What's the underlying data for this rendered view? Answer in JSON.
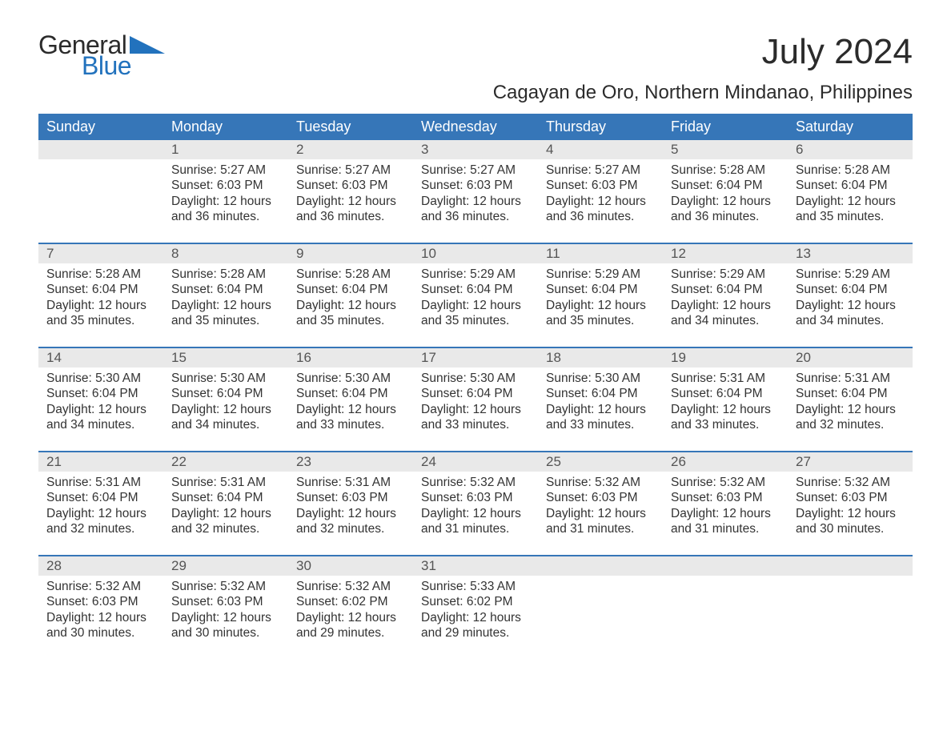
{
  "logo": {
    "text_top": "General",
    "text_bottom": "Blue",
    "accent_color": "#2272bd"
  },
  "title": "July 2024",
  "subtitle": "Cagayan de Oro, Northern Mindanao, Philippines",
  "colors": {
    "header_bg": "#3676b8",
    "header_text": "#ffffff",
    "daynum_bg": "#e9e9e9",
    "week_border": "#3676b8",
    "body_text": "#333333"
  },
  "day_headers": [
    "Sunday",
    "Monday",
    "Tuesday",
    "Wednesday",
    "Thursday",
    "Friday",
    "Saturday"
  ],
  "weeks": [
    [
      {
        "n": "",
        "sunrise": "",
        "sunset": "",
        "daylight1": "",
        "daylight2": ""
      },
      {
        "n": "1",
        "sunrise": "Sunrise: 5:27 AM",
        "sunset": "Sunset: 6:03 PM",
        "daylight1": "Daylight: 12 hours",
        "daylight2": "and 36 minutes."
      },
      {
        "n": "2",
        "sunrise": "Sunrise: 5:27 AM",
        "sunset": "Sunset: 6:03 PM",
        "daylight1": "Daylight: 12 hours",
        "daylight2": "and 36 minutes."
      },
      {
        "n": "3",
        "sunrise": "Sunrise: 5:27 AM",
        "sunset": "Sunset: 6:03 PM",
        "daylight1": "Daylight: 12 hours",
        "daylight2": "and 36 minutes."
      },
      {
        "n": "4",
        "sunrise": "Sunrise: 5:27 AM",
        "sunset": "Sunset: 6:03 PM",
        "daylight1": "Daylight: 12 hours",
        "daylight2": "and 36 minutes."
      },
      {
        "n": "5",
        "sunrise": "Sunrise: 5:28 AM",
        "sunset": "Sunset: 6:04 PM",
        "daylight1": "Daylight: 12 hours",
        "daylight2": "and 36 minutes."
      },
      {
        "n": "6",
        "sunrise": "Sunrise: 5:28 AM",
        "sunset": "Sunset: 6:04 PM",
        "daylight1": "Daylight: 12 hours",
        "daylight2": "and 35 minutes."
      }
    ],
    [
      {
        "n": "7",
        "sunrise": "Sunrise: 5:28 AM",
        "sunset": "Sunset: 6:04 PM",
        "daylight1": "Daylight: 12 hours",
        "daylight2": "and 35 minutes."
      },
      {
        "n": "8",
        "sunrise": "Sunrise: 5:28 AM",
        "sunset": "Sunset: 6:04 PM",
        "daylight1": "Daylight: 12 hours",
        "daylight2": "and 35 minutes."
      },
      {
        "n": "9",
        "sunrise": "Sunrise: 5:28 AM",
        "sunset": "Sunset: 6:04 PM",
        "daylight1": "Daylight: 12 hours",
        "daylight2": "and 35 minutes."
      },
      {
        "n": "10",
        "sunrise": "Sunrise: 5:29 AM",
        "sunset": "Sunset: 6:04 PM",
        "daylight1": "Daylight: 12 hours",
        "daylight2": "and 35 minutes."
      },
      {
        "n": "11",
        "sunrise": "Sunrise: 5:29 AM",
        "sunset": "Sunset: 6:04 PM",
        "daylight1": "Daylight: 12 hours",
        "daylight2": "and 35 minutes."
      },
      {
        "n": "12",
        "sunrise": "Sunrise: 5:29 AM",
        "sunset": "Sunset: 6:04 PM",
        "daylight1": "Daylight: 12 hours",
        "daylight2": "and 34 minutes."
      },
      {
        "n": "13",
        "sunrise": "Sunrise: 5:29 AM",
        "sunset": "Sunset: 6:04 PM",
        "daylight1": "Daylight: 12 hours",
        "daylight2": "and 34 minutes."
      }
    ],
    [
      {
        "n": "14",
        "sunrise": "Sunrise: 5:30 AM",
        "sunset": "Sunset: 6:04 PM",
        "daylight1": "Daylight: 12 hours",
        "daylight2": "and 34 minutes."
      },
      {
        "n": "15",
        "sunrise": "Sunrise: 5:30 AM",
        "sunset": "Sunset: 6:04 PM",
        "daylight1": "Daylight: 12 hours",
        "daylight2": "and 34 minutes."
      },
      {
        "n": "16",
        "sunrise": "Sunrise: 5:30 AM",
        "sunset": "Sunset: 6:04 PM",
        "daylight1": "Daylight: 12 hours",
        "daylight2": "and 33 minutes."
      },
      {
        "n": "17",
        "sunrise": "Sunrise: 5:30 AM",
        "sunset": "Sunset: 6:04 PM",
        "daylight1": "Daylight: 12 hours",
        "daylight2": "and 33 minutes."
      },
      {
        "n": "18",
        "sunrise": "Sunrise: 5:30 AM",
        "sunset": "Sunset: 6:04 PM",
        "daylight1": "Daylight: 12 hours",
        "daylight2": "and 33 minutes."
      },
      {
        "n": "19",
        "sunrise": "Sunrise: 5:31 AM",
        "sunset": "Sunset: 6:04 PM",
        "daylight1": "Daylight: 12 hours",
        "daylight2": "and 33 minutes."
      },
      {
        "n": "20",
        "sunrise": "Sunrise: 5:31 AM",
        "sunset": "Sunset: 6:04 PM",
        "daylight1": "Daylight: 12 hours",
        "daylight2": "and 32 minutes."
      }
    ],
    [
      {
        "n": "21",
        "sunrise": "Sunrise: 5:31 AM",
        "sunset": "Sunset: 6:04 PM",
        "daylight1": "Daylight: 12 hours",
        "daylight2": "and 32 minutes."
      },
      {
        "n": "22",
        "sunrise": "Sunrise: 5:31 AM",
        "sunset": "Sunset: 6:04 PM",
        "daylight1": "Daylight: 12 hours",
        "daylight2": "and 32 minutes."
      },
      {
        "n": "23",
        "sunrise": "Sunrise: 5:31 AM",
        "sunset": "Sunset: 6:03 PM",
        "daylight1": "Daylight: 12 hours",
        "daylight2": "and 32 minutes."
      },
      {
        "n": "24",
        "sunrise": "Sunrise: 5:32 AM",
        "sunset": "Sunset: 6:03 PM",
        "daylight1": "Daylight: 12 hours",
        "daylight2": "and 31 minutes."
      },
      {
        "n": "25",
        "sunrise": "Sunrise: 5:32 AM",
        "sunset": "Sunset: 6:03 PM",
        "daylight1": "Daylight: 12 hours",
        "daylight2": "and 31 minutes."
      },
      {
        "n": "26",
        "sunrise": "Sunrise: 5:32 AM",
        "sunset": "Sunset: 6:03 PM",
        "daylight1": "Daylight: 12 hours",
        "daylight2": "and 31 minutes."
      },
      {
        "n": "27",
        "sunrise": "Sunrise: 5:32 AM",
        "sunset": "Sunset: 6:03 PM",
        "daylight1": "Daylight: 12 hours",
        "daylight2": "and 30 minutes."
      }
    ],
    [
      {
        "n": "28",
        "sunrise": "Sunrise: 5:32 AM",
        "sunset": "Sunset: 6:03 PM",
        "daylight1": "Daylight: 12 hours",
        "daylight2": "and 30 minutes."
      },
      {
        "n": "29",
        "sunrise": "Sunrise: 5:32 AM",
        "sunset": "Sunset: 6:03 PM",
        "daylight1": "Daylight: 12 hours",
        "daylight2": "and 30 minutes."
      },
      {
        "n": "30",
        "sunrise": "Sunrise: 5:32 AM",
        "sunset": "Sunset: 6:02 PM",
        "daylight1": "Daylight: 12 hours",
        "daylight2": "and 29 minutes."
      },
      {
        "n": "31",
        "sunrise": "Sunrise: 5:33 AM",
        "sunset": "Sunset: 6:02 PM",
        "daylight1": "Daylight: 12 hours",
        "daylight2": "and 29 minutes."
      },
      {
        "n": "",
        "sunrise": "",
        "sunset": "",
        "daylight1": "",
        "daylight2": ""
      },
      {
        "n": "",
        "sunrise": "",
        "sunset": "",
        "daylight1": "",
        "daylight2": ""
      },
      {
        "n": "",
        "sunrise": "",
        "sunset": "",
        "daylight1": "",
        "daylight2": ""
      }
    ]
  ]
}
